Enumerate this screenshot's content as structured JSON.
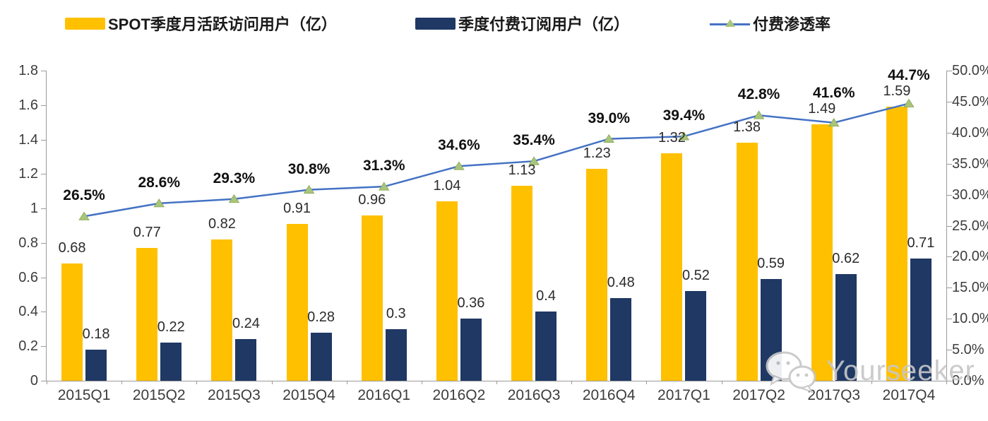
{
  "legend": {
    "items": [
      {
        "label": "SPOT季度月活跃访问用户（亿）",
        "swatch": "yellow-bar-swatch"
      },
      {
        "label": "季度付费订阅用户（亿）",
        "swatch": "navy-bar-swatch"
      },
      {
        "label": "付费渗透率",
        "swatch": "line-marker-swatch"
      }
    ]
  },
  "colors": {
    "bar_mau": "#FFC000",
    "bar_subs": "#1F3864",
    "line": "#4472C4",
    "marker_fill": "#A9C57B",
    "marker_stroke": "#86A653",
    "axis": "#9b9b9b",
    "watermark": "#c7c7c7"
  },
  "watermark": {
    "icon": "wechat-icon",
    "text": "Yourseeker"
  },
  "chart_data": {
    "type": "bar+line",
    "categories": [
      "2015Q1",
      "2015Q2",
      "2015Q3",
      "2015Q4",
      "2016Q1",
      "2016Q2",
      "2016Q3",
      "2016Q4",
      "2017Q1",
      "2017Q2",
      "2017Q3",
      "2017Q4"
    ],
    "series": [
      {
        "name": "SPOT季度月活跃访问用户（亿）",
        "type": "bar",
        "axis": "left",
        "color": "#FFC000",
        "values": [
          0.68,
          0.77,
          0.82,
          0.91,
          0.96,
          1.04,
          1.13,
          1.23,
          1.32,
          1.38,
          1.49,
          1.59
        ],
        "labels": [
          "0.68",
          "0.77",
          "0.82",
          "0.91",
          "0.96",
          "1.04",
          "1.13",
          "1.23",
          "1.32",
          "1.38",
          "1.49",
          "1.59"
        ]
      },
      {
        "name": "季度付费订阅用户（亿）",
        "type": "bar",
        "axis": "left",
        "color": "#1F3864",
        "values": [
          0.18,
          0.22,
          0.24,
          0.28,
          0.3,
          0.36,
          0.4,
          0.48,
          0.52,
          0.59,
          0.62,
          0.71
        ],
        "labels": [
          "0.18",
          "0.22",
          "0.24",
          "0.28",
          "0.3",
          "0.36",
          "0.4",
          "0.48",
          "0.52",
          "0.59",
          "0.62",
          "0.71"
        ]
      },
      {
        "name": "付费渗透率",
        "type": "line",
        "axis": "right",
        "color": "#4472C4",
        "values": [
          26.5,
          28.6,
          29.3,
          30.8,
          31.3,
          34.6,
          35.4,
          39.0,
          39.4,
          42.8,
          41.6,
          44.7
        ],
        "labels": [
          "26.5%",
          "28.6%",
          "29.3%",
          "30.8%",
          "31.3%",
          "34.6%",
          "35.4%",
          "39.0%",
          "39.4%",
          "42.8%",
          "41.6%",
          "44.7%"
        ]
      }
    ],
    "left_axis": {
      "min": 0,
      "max": 1.8,
      "ticks": [
        "1.8",
        "1.6",
        "1.4",
        "1.2",
        "1",
        "0.8",
        "0.6",
        "0.4",
        "0.2",
        "0"
      ]
    },
    "right_axis": {
      "min": 0,
      "max": 50,
      "ticks": [
        "50.0%",
        "45.0%",
        "40.0%",
        "35.0%",
        "30.0%",
        "25.0%",
        "20.0%",
        "15.0%",
        "10.0%",
        "5.0%",
        "0.0%"
      ]
    },
    "grid": false,
    "legend_position": "top",
    "title": ""
  }
}
